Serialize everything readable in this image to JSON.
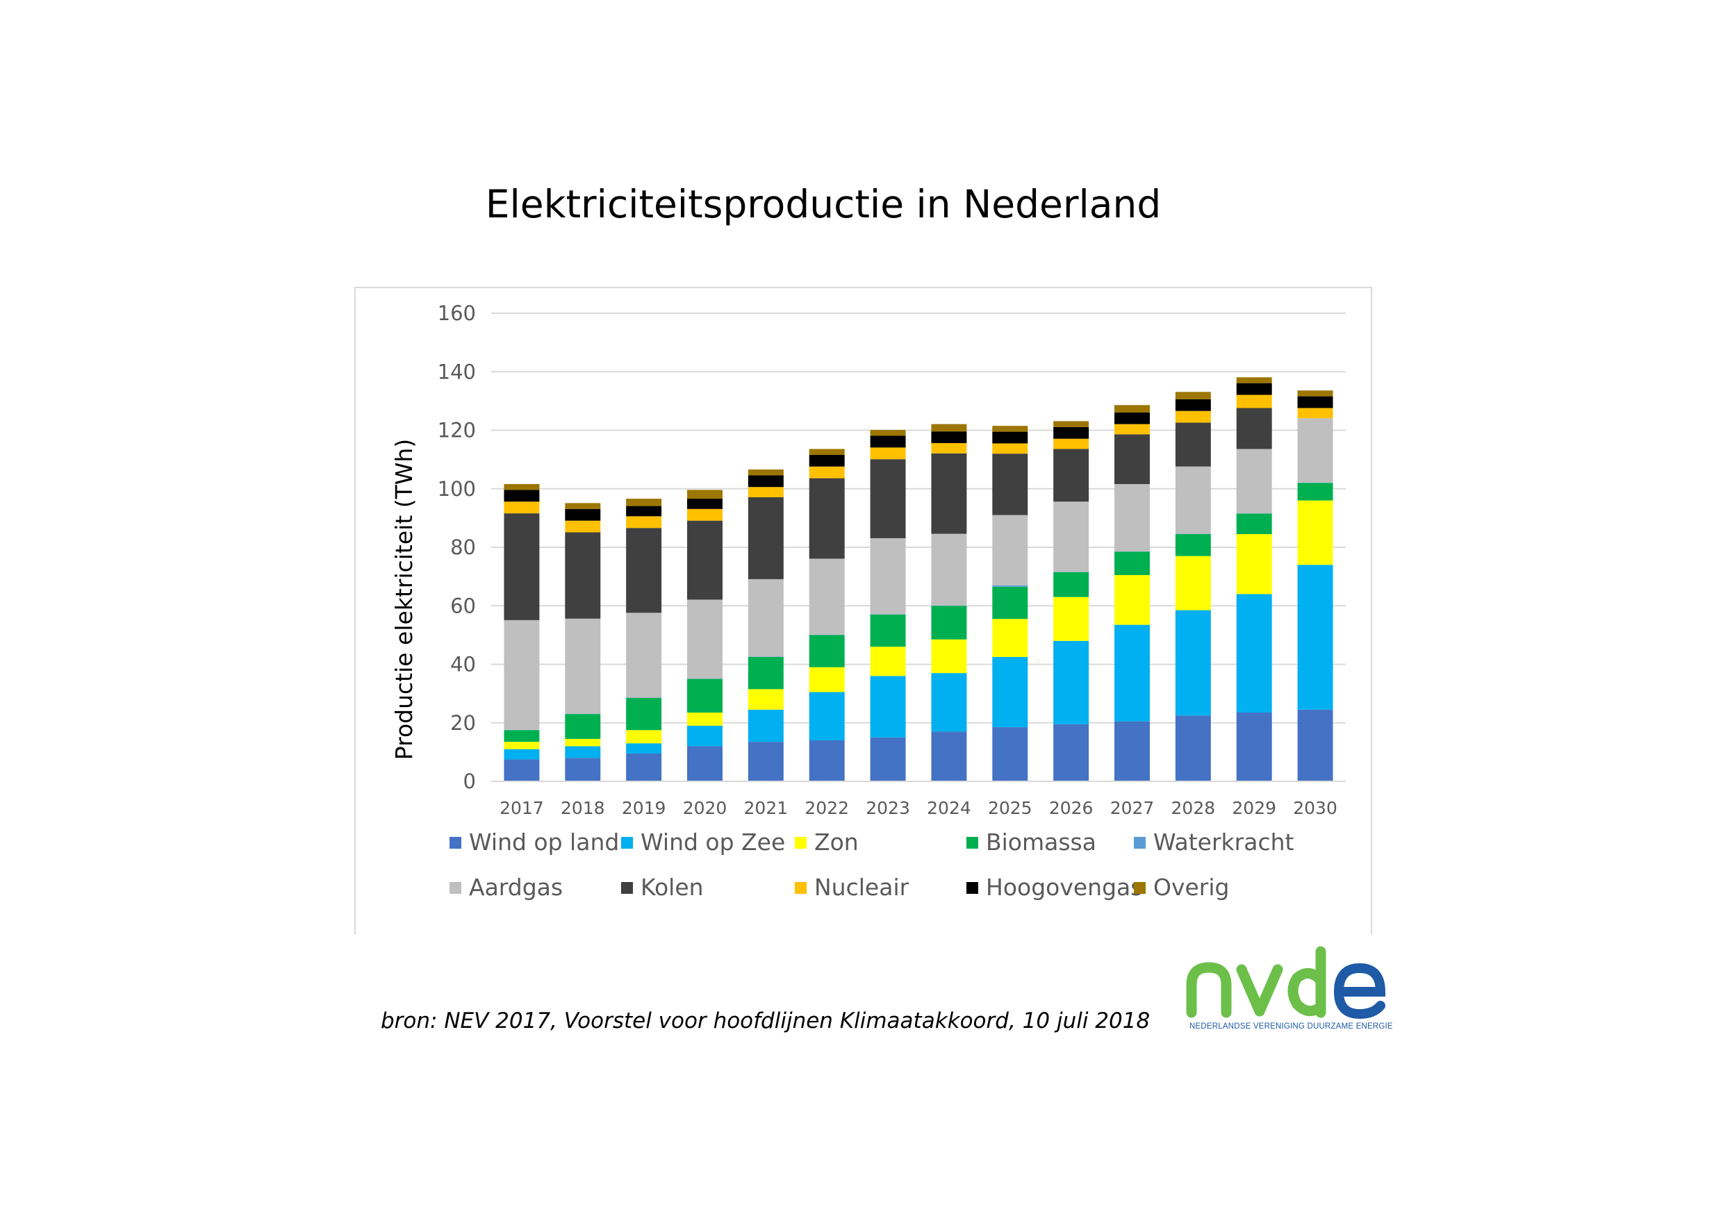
{
  "title": "Elektriciteitsproductie in Nederland",
  "source_note": "bron: NEV 2017, Voorstel voor hoofdlijnen Klimaatakkoord, 10 juli 2018",
  "logo": {
    "text": "nvde",
    "tagline": "NEDERLANDSE VERENIGING DUURZAME ENERGIE",
    "colors": {
      "green": "#6cc04a",
      "blue": "#1f5aa6"
    }
  },
  "chart_data": {
    "type": "bar",
    "stacked": true,
    "title": "",
    "xlabel": "",
    "ylabel": "Productie elektriciteit (TWh)",
    "ylim": [
      0,
      160
    ],
    "yticks": [
      0,
      20,
      40,
      60,
      80,
      100,
      120,
      140,
      160
    ],
    "grid": true,
    "legend_position": "bottom",
    "categories": [
      "2017",
      "2018",
      "2019",
      "2020",
      "2021",
      "2022",
      "2023",
      "2024",
      "2025",
      "2026",
      "2027",
      "2028",
      "2029",
      "2030"
    ],
    "series": [
      {
        "name": "Wind op land",
        "color": "#4472c4",
        "values": [
          7.5,
          8,
          9.5,
          12,
          13.5,
          14,
          15,
          17,
          18.5,
          19.5,
          20.5,
          22.5,
          23.5,
          24.5
        ]
      },
      {
        "name": "Wind op Zee",
        "color": "#00b0f0",
        "values": [
          3.5,
          4,
          3.5,
          7,
          11,
          16.5,
          21,
          20,
          24,
          28.5,
          33,
          36,
          40.5,
          49.5
        ]
      },
      {
        "name": "Zon",
        "color": "#ffff00",
        "values": [
          2.5,
          2.5,
          4.5,
          4.5,
          7,
          8.5,
          10,
          11.5,
          13,
          15,
          17,
          18.5,
          20.5,
          22
        ]
      },
      {
        "name": "Biomassa",
        "color": "#00b050",
        "values": [
          4,
          8.5,
          11,
          11.5,
          11,
          11,
          11,
          11.5,
          11,
          8.5,
          8,
          7.5,
          7,
          6
        ]
      },
      {
        "name": "Waterkracht",
        "color": "#5b9bd5",
        "values": [
          0.1,
          0.1,
          0.1,
          0.1,
          0.1,
          0.1,
          0.1,
          0.1,
          0.5,
          0.1,
          0.1,
          0.1,
          0.1,
          0.1
        ]
      },
      {
        "name": "Aardgas",
        "color": "#bfbfbf",
        "values": [
          37.5,
          32.5,
          29,
          27,
          26.5,
          26,
          26,
          24.5,
          24,
          24,
          23,
          23,
          22,
          22
        ]
      },
      {
        "name": "Kolen",
        "color": "#404040",
        "values": [
          36.5,
          29.5,
          29,
          27,
          28,
          27.5,
          27,
          27.5,
          21,
          18,
          17,
          15,
          14,
          0
        ]
      },
      {
        "name": "Nucleair",
        "color": "#ffc000",
        "values": [
          4,
          4,
          4,
          4,
          3.5,
          4,
          4,
          3.5,
          3.5,
          3.5,
          3.5,
          4,
          4.5,
          3.5
        ]
      },
      {
        "name": "Hoogovengas",
        "color": "#000000",
        "values": [
          4,
          4,
          3.5,
          3.5,
          4,
          4,
          4,
          4,
          4,
          4,
          4,
          4,
          4,
          4
        ]
      },
      {
        "name": "Overig",
        "color": "#9c7600",
        "values": [
          2,
          2,
          2.5,
          3,
          2,
          2,
          2,
          2.5,
          2,
          2,
          2.5,
          2.5,
          2,
          2
        ]
      }
    ]
  }
}
